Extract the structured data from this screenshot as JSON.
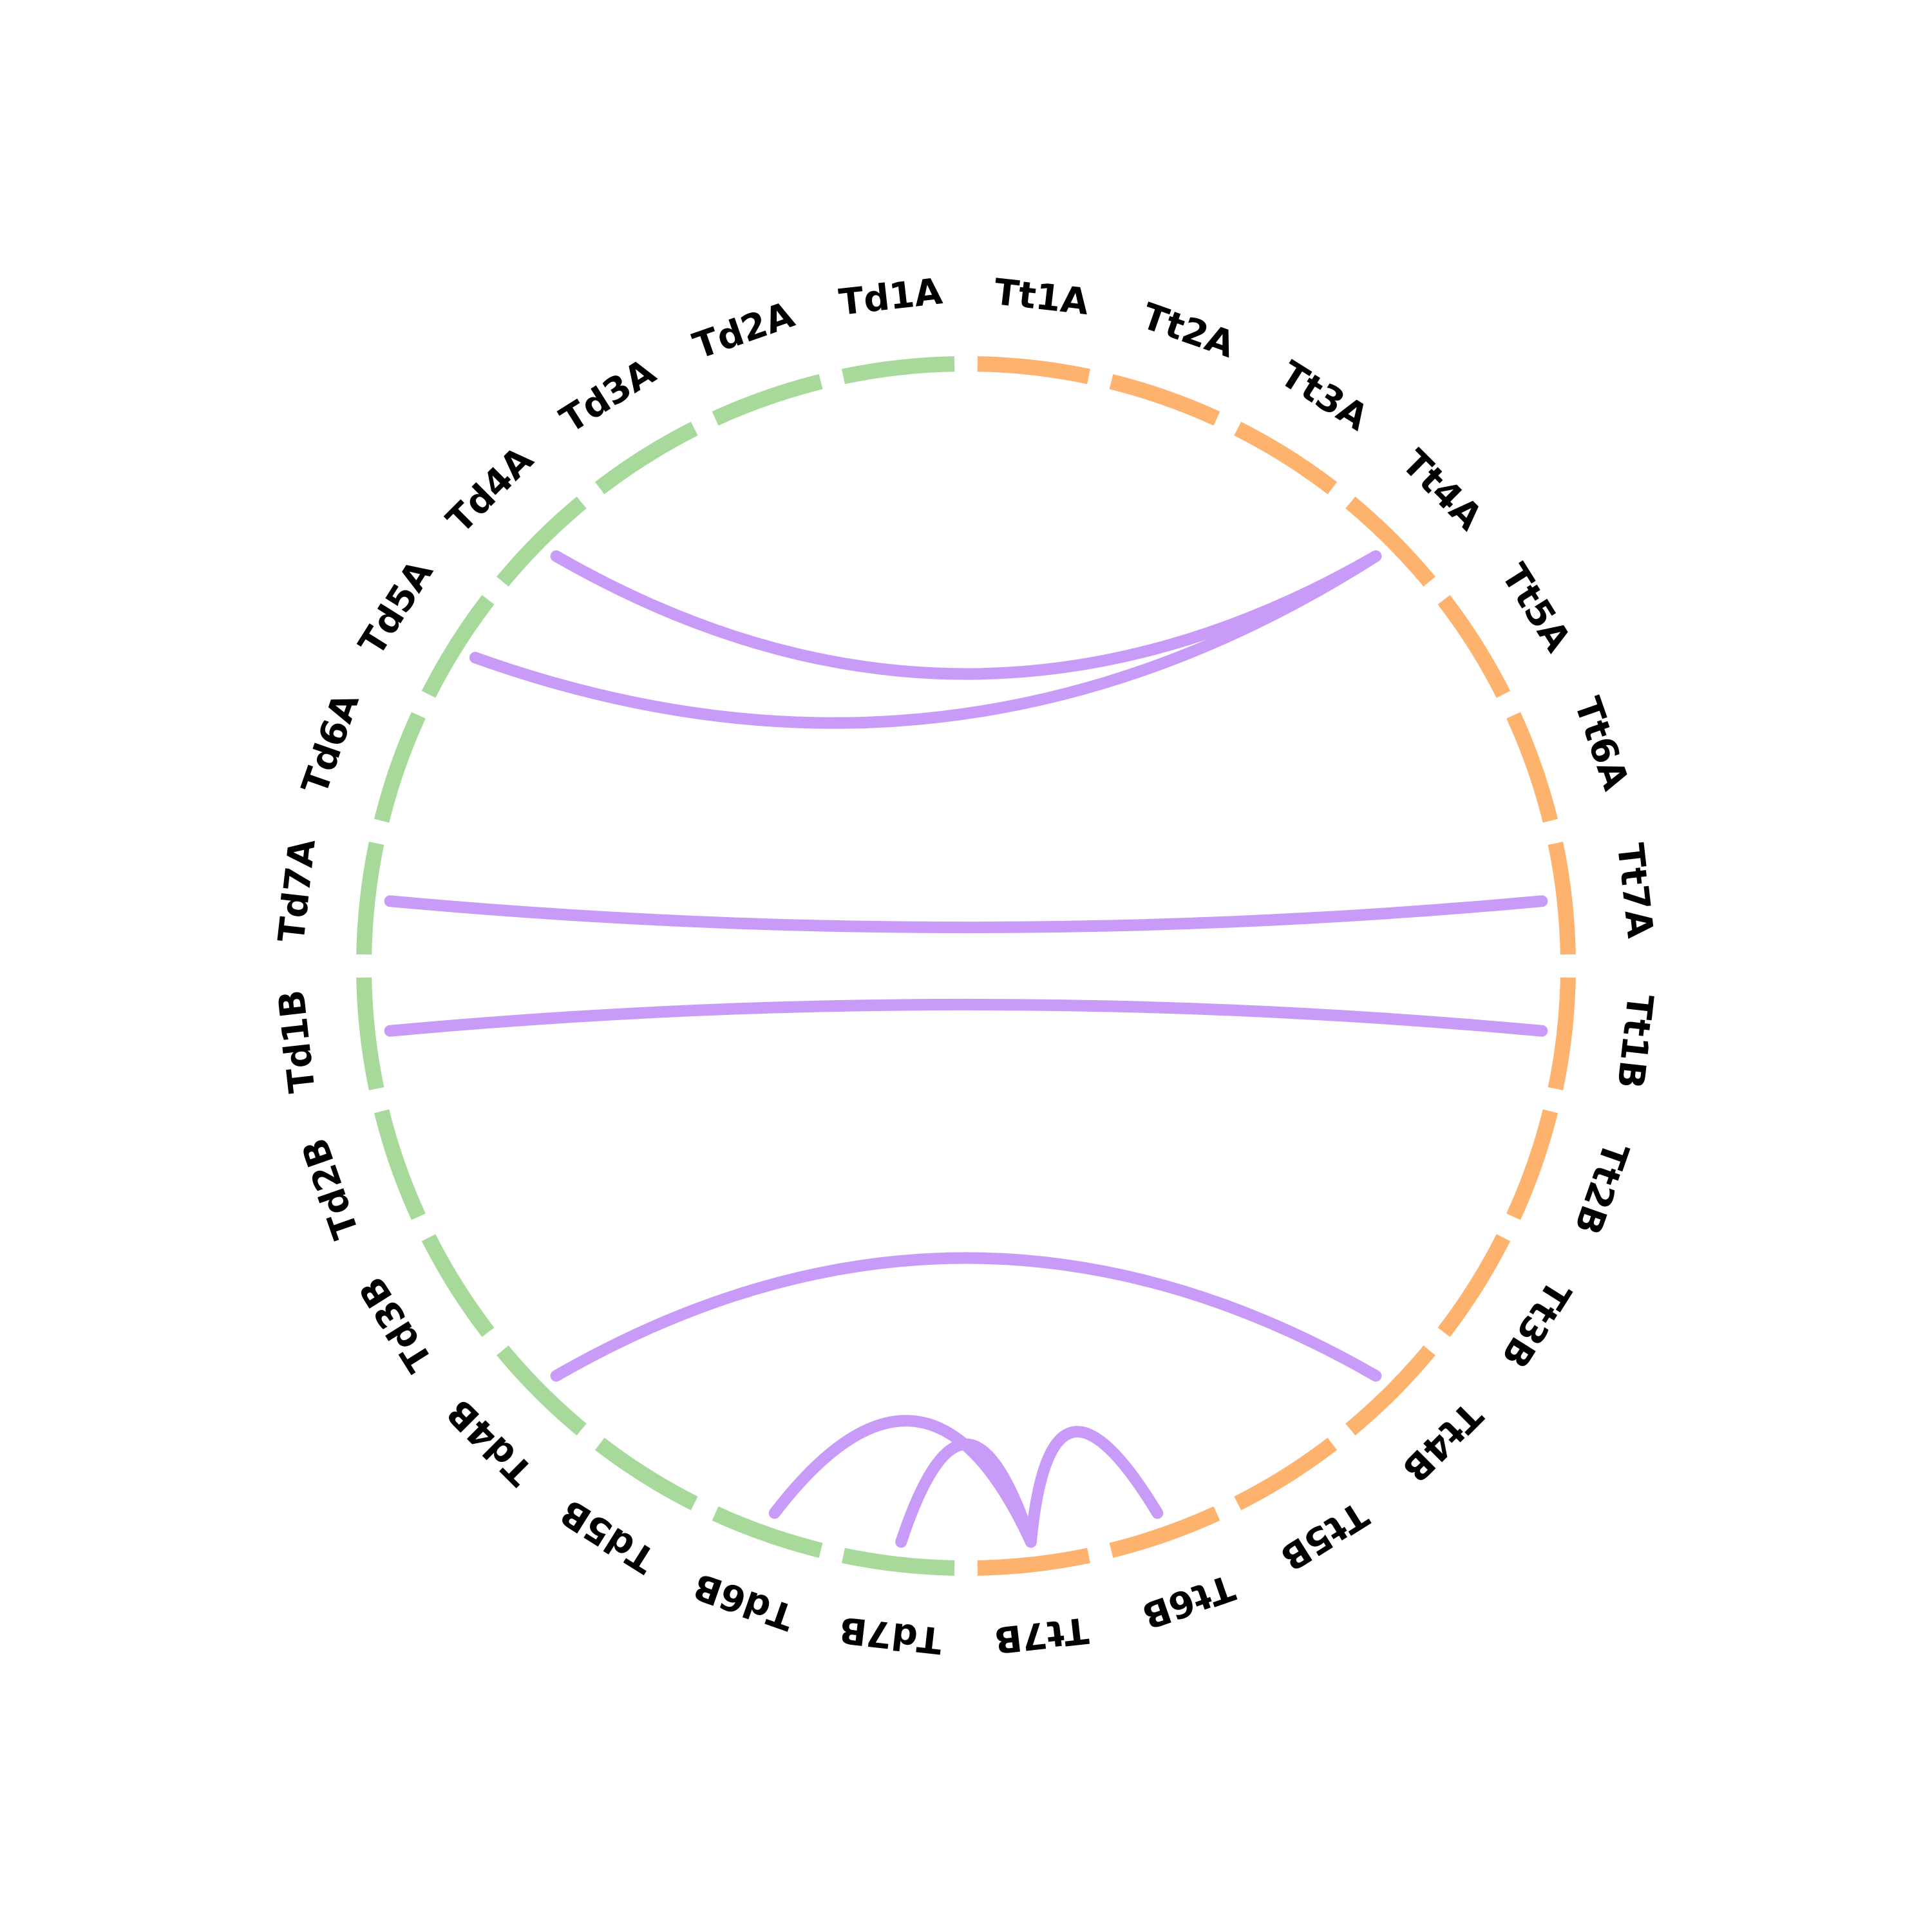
{
  "colors": {
    "group_a": "#a6d99a",
    "group_b": "#fdb26e",
    "link": "#c79bf7"
  },
  "segments": [
    {
      "label": "Tt1A",
      "group": "b"
    },
    {
      "label": "Tt2A",
      "group": "b"
    },
    {
      "label": "Tt3A",
      "group": "b"
    },
    {
      "label": "Tt4A",
      "group": "b"
    },
    {
      "label": "Tt5A",
      "group": "b"
    },
    {
      "label": "Tt6A",
      "group": "b"
    },
    {
      "label": "Tt7A",
      "group": "b"
    },
    {
      "label": "Tt1B",
      "group": "b"
    },
    {
      "label": "Tt2B",
      "group": "b"
    },
    {
      "label": "Tt3B",
      "group": "b"
    },
    {
      "label": "Tt4B",
      "group": "b"
    },
    {
      "label": "Tt5B",
      "group": "b"
    },
    {
      "label": "Tt6B",
      "group": "b"
    },
    {
      "label": "Tt7B",
      "group": "b"
    },
    {
      "label": "Td7B",
      "group": "a"
    },
    {
      "label": "Td6B",
      "group": "a"
    },
    {
      "label": "Td5B",
      "group": "a"
    },
    {
      "label": "Td4B",
      "group": "a"
    },
    {
      "label": "Td3B",
      "group": "a"
    },
    {
      "label": "Td2B",
      "group": "a"
    },
    {
      "label": "Td1B",
      "group": "a"
    },
    {
      "label": "Td7A",
      "group": "a"
    },
    {
      "label": "Td6A",
      "group": "a"
    },
    {
      "label": "Td5A",
      "group": "a"
    },
    {
      "label": "Td4A",
      "group": "a"
    },
    {
      "label": "Td3A",
      "group": "a"
    },
    {
      "label": "Td2A",
      "group": "a"
    },
    {
      "label": "Td1A",
      "group": "a"
    }
  ],
  "links": [
    {
      "from": "Td4A",
      "to": "Tt4A"
    },
    {
      "from": "Td5A",
      "to": "Tt4A"
    },
    {
      "from": "Td7A",
      "to": "Tt7A"
    },
    {
      "from": "Td1B",
      "to": "Tt1B"
    },
    {
      "from": "Td4B",
      "to": "Tt4B"
    },
    {
      "from": "Td6B",
      "to": "Tt7B"
    },
    {
      "from": "Td7B",
      "to": "Tt7B"
    },
    {
      "from": "Tt6B",
      "to": "Tt7B"
    }
  ]
}
